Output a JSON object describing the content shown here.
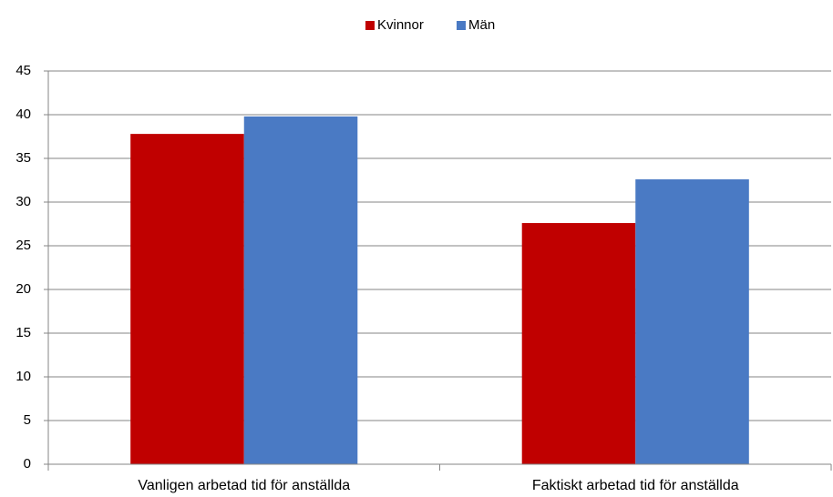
{
  "chart_data": {
    "type": "bar",
    "categories": [
      "Vanligen arbetad tid för anställda",
      "Faktiskt arbetad tid för anställda"
    ],
    "series": [
      {
        "name": "Kvinnor",
        "color": "#c00000",
        "values": [
          37.8,
          27.6
        ]
      },
      {
        "name": "Män",
        "color": "#4a7ac4",
        "values": [
          39.8,
          32.6
        ]
      }
    ],
    "ylim": [
      0,
      45
    ],
    "yticks": [
      0,
      5,
      10,
      15,
      20,
      25,
      30,
      35,
      40,
      45
    ],
    "grid": true,
    "legend": "top"
  }
}
